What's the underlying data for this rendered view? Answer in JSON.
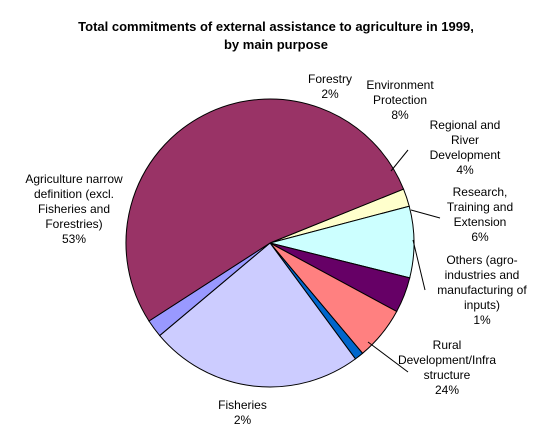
{
  "chart_data": {
    "type": "pie",
    "title": "Total commitments of external assistance to agriculture in 1999, by main purpose",
    "title_lines": [
      "Total commitments of external assistance to agriculture in 1999,",
      "by main purpose"
    ],
    "slices": [
      {
        "label": "Forestry",
        "label_lines": [
          "Forestry"
        ],
        "value": 2,
        "value_label": "2%",
        "color": "#ffffcc"
      },
      {
        "label": "Environment Protection",
        "label_lines": [
          "Environment",
          "Protection"
        ],
        "value": 8,
        "value_label": "8%",
        "color": "#ccffff"
      },
      {
        "label": "Regional and River Development",
        "label_lines": [
          "Regional and",
          "River",
          "Development"
        ],
        "value": 4,
        "value_label": "4%",
        "color": "#660066"
      },
      {
        "label": "Research, Training and Extension",
        "label_lines": [
          "Research,",
          "Training and",
          "Extension"
        ],
        "value": 6,
        "value_label": "6%",
        "color": "#ff8080"
      },
      {
        "label": "Others (agro-industries and manufacturing of inputs)",
        "label_lines": [
          "Others (agro-",
          "industries and",
          "manufacturing of",
          "inputs)"
        ],
        "value": 1,
        "value_label": "1%",
        "color": "#0066cc"
      },
      {
        "label": "Rural Development/Infra structure",
        "label_lines": [
          "Rural",
          "Development/Infra",
          "structure"
        ],
        "value": 24,
        "value_label": "24%",
        "color": "#ccccff"
      },
      {
        "label": "Fisheries",
        "label_lines": [
          "Fisheries"
        ],
        "value": 2,
        "value_label": "2%",
        "color": "#9999ff"
      },
      {
        "label": "Agriculture narrow definition (excl. Fisheries and Forestries)",
        "label_lines": [
          "Agriculture narrow",
          "definition (excl.",
          "Fisheries and",
          "Forestries)"
        ],
        "value": 53,
        "value_label": "53%",
        "color": "#993366"
      }
    ]
  }
}
